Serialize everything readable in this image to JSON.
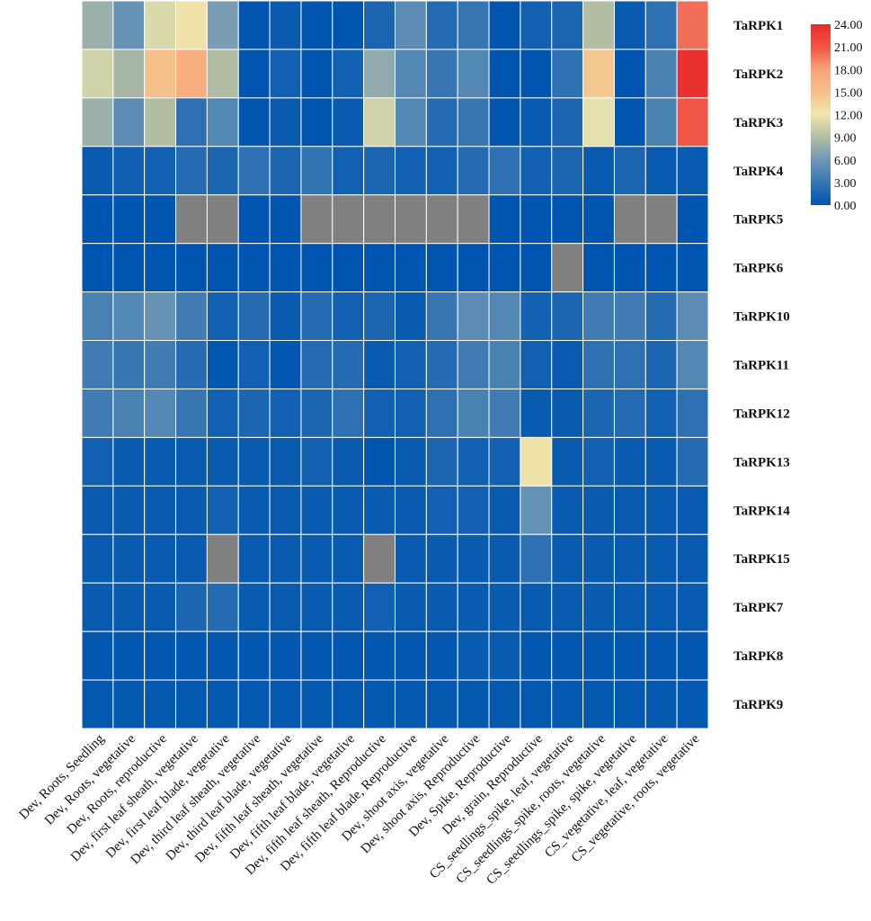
{
  "chart_data": {
    "type": "heatmap",
    "rows": [
      "TaRPK1",
      "TaRPK2",
      "TaRPK3",
      "TaRPK4",
      "TaRPK5",
      "TaRPK6",
      "TaRPK10",
      "TaRPK11",
      "TaRPK12",
      "TaRPK13",
      "TaRPK14",
      "TaRPK15",
      "TaRPK7",
      "TaRPK8",
      "TaRPK9"
    ],
    "columns": [
      "Dev, Roots, Seedling",
      "Dev, Roots, vegetative",
      "Dev, Roots, reproductive",
      "Dev, first leaf sheath, vegetative",
      "Dev, first leaf blade, vegetative",
      "Dev, third leaf sheath, vegetative",
      "Dev, third leaf blade, vegetative",
      "Dev, fifth leaf sheath, vegetative",
      "Dev, fifth leaf blade, vegetative",
      "Dev, fifth leaf sheath, Reproductive",
      "Dev, fifth leaf blade, Reproductive",
      "Dev, shoot axis, vegetative",
      "Dev, shoot axis, Reproductive",
      "Dev, Spike, Reproductive",
      "Dev, grain, Reproductive",
      "CS_seedlings_spike, leaf, vegetative",
      "CS_seedlings_spike, roots, vegetative",
      "CS_seedlings_spike, spike, vegetative",
      "CS_vegetative, leaf, vegetative",
      "CS_vegetative, roots, vegetative"
    ],
    "values": [
      [
        8,
        5.5,
        11,
        12.5,
        6.5,
        0,
        0.5,
        0,
        0,
        1.5,
        5,
        2,
        3,
        0,
        1,
        1.5,
        9,
        0.5,
        2.5,
        20
      ],
      [
        10.5,
        8.5,
        15,
        17,
        9,
        0,
        1,
        0,
        1,
        7.5,
        4.5,
        3,
        4.5,
        0,
        0,
        2.5,
        14.5,
        0,
        4,
        23.5
      ],
      [
        8,
        5,
        9,
        2.5,
        4.5,
        0,
        0.5,
        0,
        0.5,
        10.5,
        4.5,
        2,
        3,
        0,
        0.5,
        1.5,
        11.5,
        0,
        4,
        21
      ],
      [
        0.5,
        0.8,
        1.0,
        2.0,
        1.5,
        2.5,
        1.5,
        2.8,
        1.0,
        1.5,
        1.0,
        1.0,
        2.0,
        2.5,
        1.0,
        1.5,
        0.5,
        1.5,
        0.5,
        0.5
      ],
      [
        0,
        0,
        0,
        null,
        null,
        0,
        0,
        null,
        null,
        null,
        null,
        null,
        null,
        0,
        0,
        0,
        0,
        null,
        null,
        0
      ],
      [
        0,
        0,
        0,
        0,
        0,
        0,
        0,
        0,
        0,
        0,
        0,
        0,
        0,
        0,
        0,
        null,
        0,
        0,
        0,
        0
      ],
      [
        4,
        4.5,
        5.5,
        3.5,
        1.0,
        2.0,
        0.5,
        2.0,
        1.0,
        1.5,
        0.5,
        3.0,
        5.0,
        4.5,
        1.0,
        1.5,
        3.5,
        3.5,
        2.0,
        5.0
      ],
      [
        3.5,
        3.0,
        3.5,
        2.0,
        0.2,
        1.0,
        0.2,
        2.0,
        2.0,
        0.5,
        1.0,
        2.0,
        3.5,
        4.0,
        1.0,
        0.5,
        2.5,
        2.5,
        1.5,
        4.5
      ],
      [
        3.5,
        4.0,
        4.5,
        3.0,
        1.0,
        1.5,
        1.0,
        1.5,
        2.5,
        1.0,
        1.0,
        2.5,
        4.0,
        3.5,
        0.5,
        0.5,
        1.5,
        2.0,
        1.0,
        2.5
      ],
      [
        1.0,
        0.5,
        0.5,
        0.5,
        0.5,
        0.5,
        0.5,
        1.0,
        0.5,
        0,
        0.5,
        1.5,
        1.0,
        1.0,
        12.5,
        0.5,
        1.0,
        0.5,
        0.5,
        2.0
      ],
      [
        0.5,
        0.5,
        0.5,
        0.5,
        1.0,
        0.5,
        0.5,
        0.5,
        0.5,
        0.5,
        0.5,
        1.0,
        1.0,
        0.5,
        5.5,
        0.5,
        0.5,
        0.5,
        0.5,
        0.5
      ],
      [
        0.5,
        0.5,
        0.5,
        0.5,
        null,
        0.5,
        0.5,
        0.5,
        0.5,
        null,
        0.5,
        0.5,
        0.5,
        0.5,
        2.5,
        0.5,
        0.5,
        0.5,
        0.5,
        0.5
      ],
      [
        0.5,
        0.5,
        0.5,
        1.5,
        2.0,
        0.5,
        0.5,
        0.5,
        0.5,
        1.0,
        0.5,
        0.5,
        0.5,
        0.5,
        0.5,
        0.5,
        0.5,
        0.5,
        0.5,
        0.5
      ],
      [
        0.2,
        0.2,
        0.2,
        0.2,
        0.2,
        0.2,
        0.2,
        0.2,
        0.2,
        0.2,
        0.2,
        0.2,
        0.5,
        0.5,
        0.2,
        0.2,
        0.2,
        0.2,
        0.2,
        0.2
      ],
      [
        0.3,
        0.3,
        0.3,
        0.3,
        0.3,
        0.3,
        0.3,
        0.3,
        0.3,
        0.3,
        0.3,
        0.3,
        0.3,
        0.3,
        0.3,
        0.3,
        0.3,
        0.3,
        0.3,
        0.3
      ]
    ],
    "missing_color": "#808080",
    "color_scale": {
      "min": 0,
      "max": 24,
      "stops": [
        {
          "value": 0,
          "color": "#0055B0"
        },
        {
          "value": 6,
          "color": "#6E97B5"
        },
        {
          "value": 9,
          "color": "#B2BDA4"
        },
        {
          "value": 12,
          "color": "#EEE7B0"
        },
        {
          "value": 15,
          "color": "#F6C08A"
        },
        {
          "value": 18,
          "color": "#F7A47A"
        },
        {
          "value": 21,
          "color": "#F05545"
        },
        {
          "value": 24,
          "color": "#E82A2A"
        }
      ],
      "ticks": [
        "24.00",
        "21.00",
        "18.00",
        "15.00",
        "12.00",
        "9.00",
        "6.00",
        "3.00",
        "0.00"
      ]
    },
    "legend_position": "top-right"
  }
}
